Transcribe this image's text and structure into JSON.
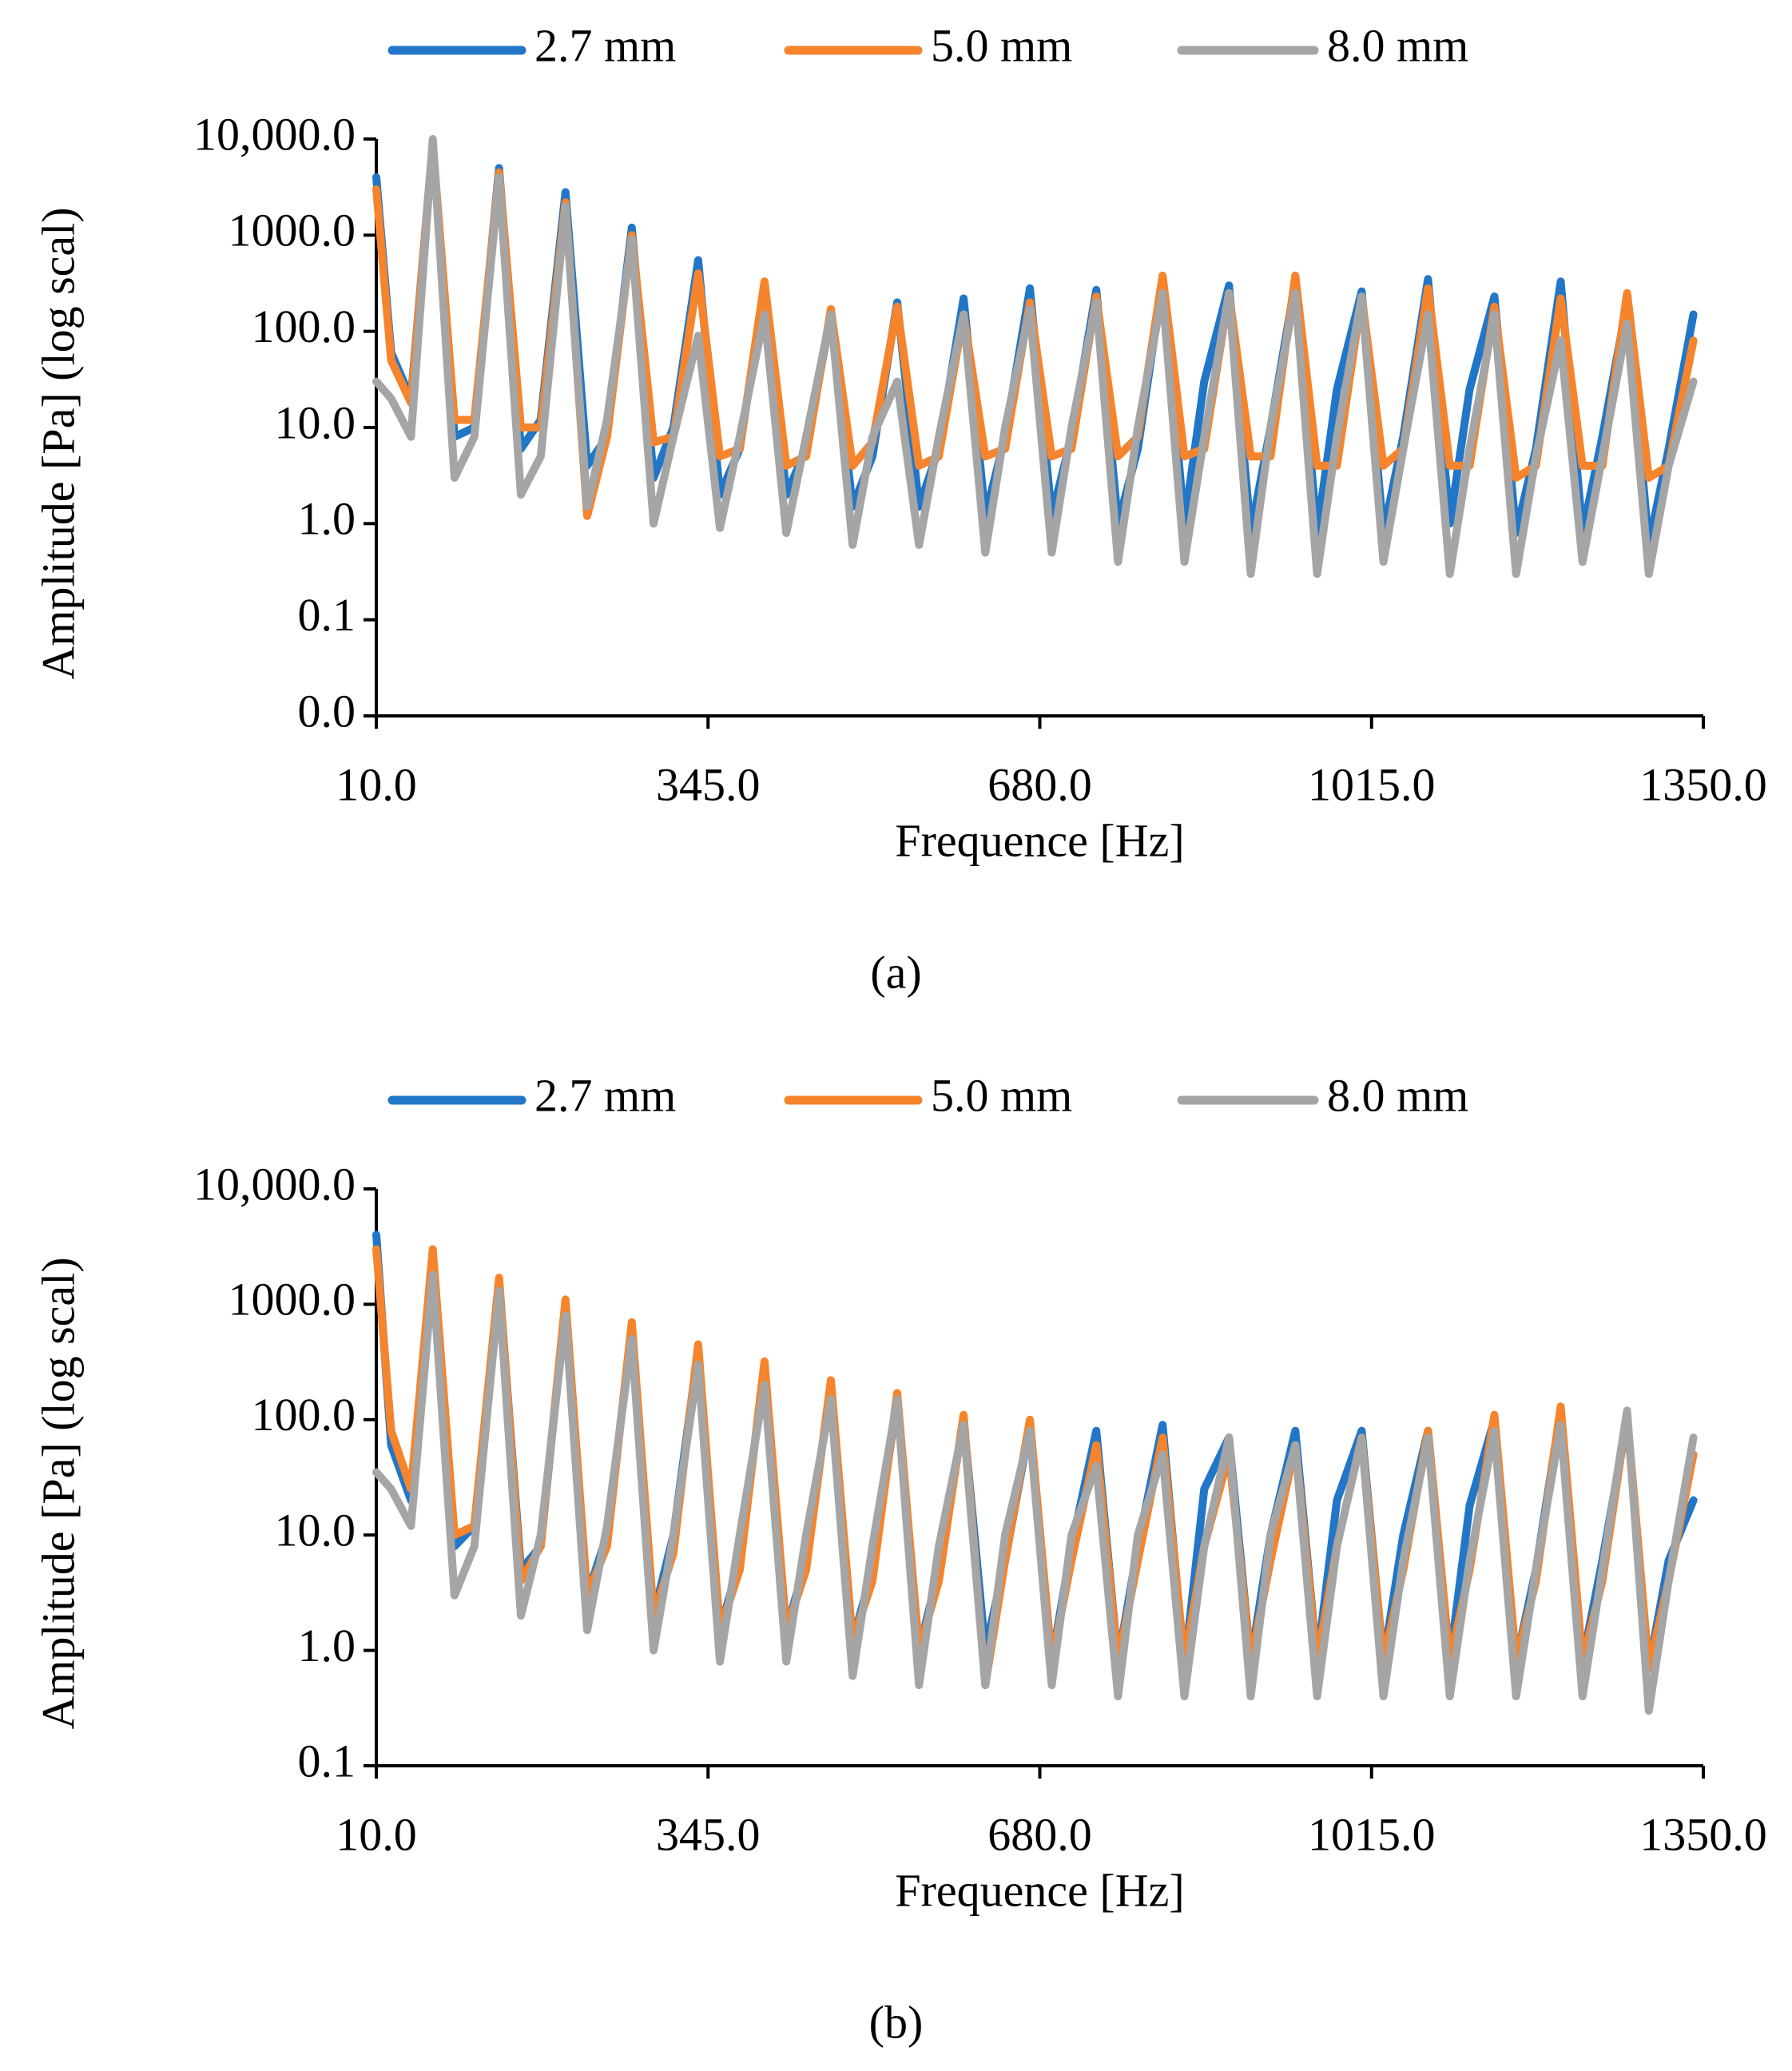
{
  "chart_data": [
    {
      "type": "line",
      "caption": "(a)",
      "xlabel": "Frequence [Hz]",
      "ylabel": "Amplitude [Pa] (log scal)",
      "yscale": "log",
      "legend": "top",
      "x": [
        10,
        25,
        45,
        67,
        89,
        109,
        134,
        156,
        176,
        201,
        223,
        243,
        268,
        290,
        310,
        335,
        357,
        377,
        402,
        424,
        444,
        469,
        491,
        511,
        536,
        558,
        578,
        603,
        625,
        645,
        670,
        692,
        712,
        737,
        759,
        779,
        804,
        826,
        846,
        871,
        893,
        913,
        938,
        960,
        980,
        1005,
        1027,
        1047,
        1072,
        1094,
        1114,
        1139,
        1161,
        1181,
        1206,
        1228,
        1248,
        1273,
        1295,
        1315,
        1340
      ],
      "xlim": [
        10,
        1350
      ],
      "xticks": [
        {
          "value": 10,
          "label": "10.0"
        },
        {
          "value": 345,
          "label": "345.0"
        },
        {
          "value": 680,
          "label": "680.0"
        },
        {
          "value": 1015,
          "label": "1015.0"
        },
        {
          "value": 1350,
          "label": "1350.0"
        }
      ],
      "ylim": [
        0.01,
        10000
      ],
      "yticks": [
        {
          "value": 0.01,
          "label": "0.0"
        },
        0.1,
        {
          "value": 1,
          "label": "1.0"
        },
        {
          "value": 10,
          "label": "10.0"
        },
        {
          "value": 100,
          "label": "100.0"
        },
        {
          "value": 1000,
          "label": "1000.0"
        },
        {
          "value": 10000,
          "label": "10,000.0"
        }
      ],
      "series": [
        {
          "name": "2.7 mm",
          "color": "#2176c8",
          "values": [
            4000,
            60,
            20,
            9000,
            8,
            10,
            5000,
            6,
            12,
            2800,
            4,
            8,
            1200,
            3,
            10,
            550,
            2,
            6,
            300,
            2,
            6,
            150,
            1.5,
            5,
            200,
            1.5,
            6,
            220,
            1.2,
            8,
            280,
            1.2,
            8,
            270,
            1,
            6,
            330,
            1,
            30,
            300,
            0.8,
            10,
            330,
            0.8,
            25,
            260,
            0.8,
            8,
            350,
            1,
            25,
            230,
            0.8,
            6,
            330,
            0.8,
            8,
            200,
            0.6,
            6,
            150
          ]
        },
        {
          "name": "5.0 mm",
          "color": "#f5842c",
          "values": [
            3000,
            50,
            18,
            9000,
            12,
            12,
            4500,
            10,
            10,
            2200,
            1.2,
            8,
            1000,
            7,
            8,
            400,
            5,
            6,
            330,
            4,
            5,
            170,
            4,
            7,
            180,
            4,
            5,
            150,
            5,
            6,
            200,
            5,
            6,
            230,
            5,
            8,
            380,
            5,
            6,
            250,
            5,
            5,
            380,
            4,
            4,
            230,
            4,
            6,
            280,
            4,
            4,
            180,
            3,
            4,
            220,
            4,
            4,
            250,
            3,
            4,
            80
          ]
        },
        {
          "name": "8.0 mm",
          "color": "#a5a5a5",
          "values": [
            30,
            20,
            8,
            10000,
            3,
            8,
            4000,
            2,
            5,
            2000,
            1.5,
            12,
            900,
            1,
            8,
            90,
            0.9,
            8,
            150,
            0.8,
            8,
            150,
            0.6,
            8,
            30,
            0.6,
            8,
            150,
            0.5,
            10,
            170,
            0.5,
            10,
            200,
            0.4,
            10,
            250,
            0.4,
            8,
            250,
            0.3,
            10,
            250,
            0.3,
            8,
            230,
            0.4,
            6,
            150,
            0.3,
            6,
            150,
            0.3,
            5,
            80,
            0.4,
            5,
            120,
            0.3,
            4,
            30
          ]
        }
      ]
    },
    {
      "type": "line",
      "caption": "(b)",
      "xlabel": "Frequence [Hz]",
      "ylabel": "Amplitude [Pa] (log scal)",
      "yscale": "log",
      "legend": "top",
      "x": [
        10,
        25,
        45,
        67,
        89,
        109,
        134,
        156,
        176,
        201,
        223,
        243,
        268,
        290,
        310,
        335,
        357,
        377,
        402,
        424,
        444,
        469,
        491,
        511,
        536,
        558,
        578,
        603,
        625,
        645,
        670,
        692,
        712,
        737,
        759,
        779,
        804,
        826,
        846,
        871,
        893,
        913,
        938,
        960,
        980,
        1005,
        1027,
        1047,
        1072,
        1094,
        1114,
        1139,
        1161,
        1181,
        1206,
        1228,
        1248,
        1273,
        1295,
        1315,
        1340
      ],
      "xlim": [
        10,
        1350
      ],
      "xticks": [
        {
          "value": 10,
          "label": "10.0"
        },
        {
          "value": 345,
          "label": "345.0"
        },
        {
          "value": 680,
          "label": "680.0"
        },
        {
          "value": 1015,
          "label": "1015.0"
        },
        {
          "value": 1350,
          "label": "1350.0"
        }
      ],
      "ylim": [
        0.1,
        10000
      ],
      "yticks": [
        0.1,
        {
          "value": 1,
          "label": "1.0"
        },
        {
          "value": 10,
          "label": "10.0"
        },
        {
          "value": 100,
          "label": "100.0"
        },
        {
          "value": 1000,
          "label": "1000.0"
        },
        {
          "value": 10000,
          "label": "10,000.0"
        }
      ],
      "series": [
        {
          "name": "2.7 mm",
          "color": "#2176c8",
          "values": [
            4000,
            60,
            20,
            2500,
            8,
            12,
            1600,
            5,
            8,
            1000,
            3,
            10,
            600,
            2,
            10,
            400,
            1.5,
            6,
            280,
            1.5,
            6,
            200,
            1.2,
            5,
            150,
            1,
            5,
            100,
            1,
            6,
            90,
            0.8,
            8,
            80,
            0.8,
            8,
            90,
            0.7,
            25,
            70,
            0.8,
            10,
            80,
            0.8,
            20,
            80,
            0.8,
            10,
            80,
            0.8,
            18,
            100,
            0.8,
            5,
            120,
            0.8,
            6,
            100,
            0.7,
            6,
            20
          ]
        },
        {
          "name": "5.0 mm",
          "color": "#f5842c",
          "values": [
            3000,
            80,
            25,
            3000,
            10,
            12,
            1700,
            4,
            8,
            1100,
            3,
            8,
            700,
            2,
            7,
            450,
            1.5,
            5,
            320,
            1.5,
            5,
            220,
            1.2,
            4,
            170,
            1,
            4,
            110,
            0.5,
            6,
            100,
            0.8,
            6,
            60,
            0.8,
            6,
            70,
            0.8,
            8,
            50,
            0.8,
            6,
            60,
            0.8,
            8,
            70,
            0.8,
            5,
            80,
            0.8,
            5,
            110,
            0.8,
            4,
            130,
            0.8,
            4,
            110,
            0.7,
            4,
            50
          ]
        },
        {
          "name": "8.0 mm",
          "color": "#a5a5a5",
          "values": [
            35,
            25,
            12,
            1800,
            3,
            8,
            1300,
            2,
            10,
            800,
            1.5,
            12,
            500,
            1,
            10,
            300,
            0.8,
            10,
            200,
            0.8,
            10,
            150,
            0.6,
            8,
            150,
            0.5,
            8,
            90,
            0.5,
            10,
            80,
            0.5,
            10,
            40,
            0.4,
            10,
            50,
            0.4,
            8,
            70,
            0.4,
            10,
            60,
            0.4,
            8,
            70,
            0.4,
            6,
            70,
            0.4,
            6,
            80,
            0.4,
            5,
            90,
            0.4,
            5,
            120,
            0.3,
            4,
            70
          ]
        }
      ]
    }
  ]
}
